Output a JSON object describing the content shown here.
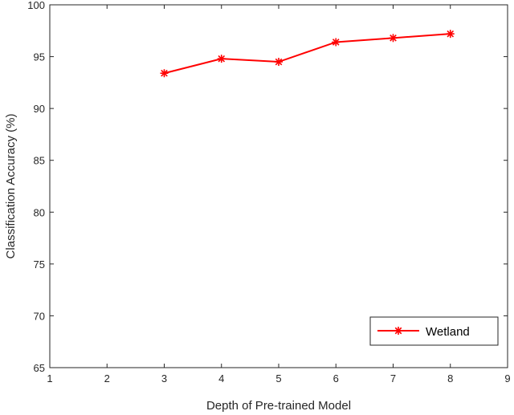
{
  "chart_data": {
    "type": "line",
    "xlabel": "Depth of Pre-trained Model",
    "ylabel": "Classification Accuracy (%)",
    "xlim": [
      1,
      9
    ],
    "ylim": [
      65,
      100
    ],
    "xticks": [
      1,
      2,
      3,
      4,
      5,
      6,
      7,
      8,
      9
    ],
    "yticks": [
      65,
      70,
      75,
      80,
      85,
      90,
      95,
      100
    ],
    "grid": false,
    "legend_position": "bottom-right",
    "series": [
      {
        "name": "Wetland",
        "color": "#ff0000",
        "marker": "asterisk",
        "x": [
          3,
          4,
          5,
          6,
          7,
          8
        ],
        "y": [
          93.4,
          94.8,
          94.5,
          96.4,
          96.8,
          97.2
        ]
      }
    ]
  }
}
